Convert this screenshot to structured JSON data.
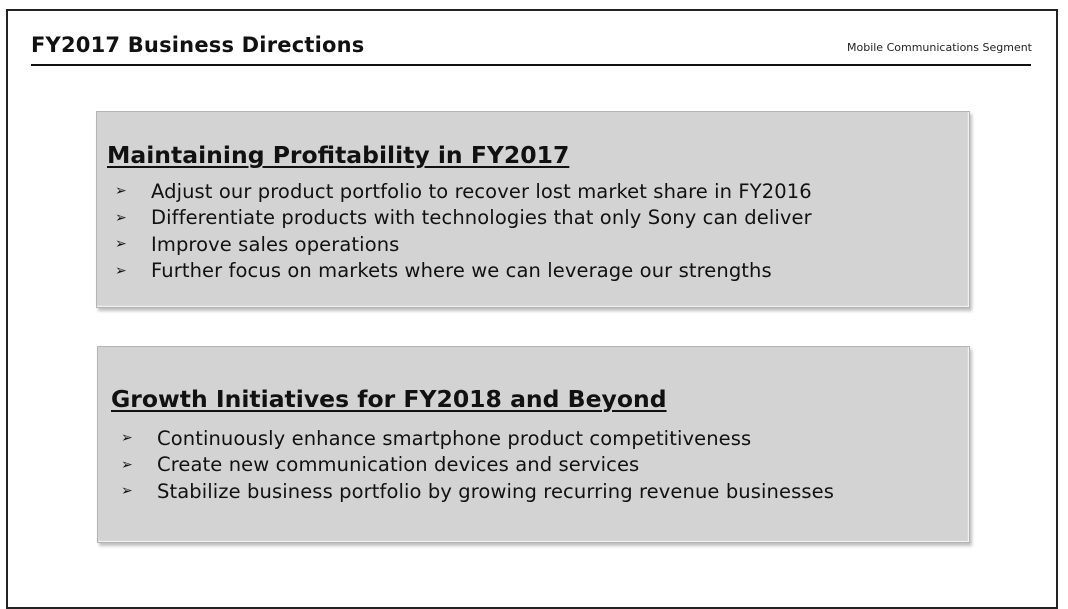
{
  "slide": {
    "title": "FY2017 Business Directions",
    "segment": "Mobile Communications Segment"
  },
  "sections": [
    {
      "heading": "Maintaining Profitability in FY2017",
      "bullet_symbol": "➢",
      "items": [
        "Adjust our product portfolio to recover lost market share in FY2016",
        "Differentiate products with technologies that only Sony can deliver",
        "Improve sales operations",
        "Further focus on markets where we can leverage our strengths"
      ]
    },
    {
      "heading": "Growth Initiatives for FY2018 and Beyond",
      "bullet_symbol": "➢",
      "items": [
        "Continuously enhance smartphone product competitiveness",
        "Create new communication devices and services",
        "Stabilize business portfolio by growing recurring revenue businesses"
      ]
    }
  ],
  "colors": {
    "panel_background": "#d3d3d3",
    "text": "#111111"
  }
}
